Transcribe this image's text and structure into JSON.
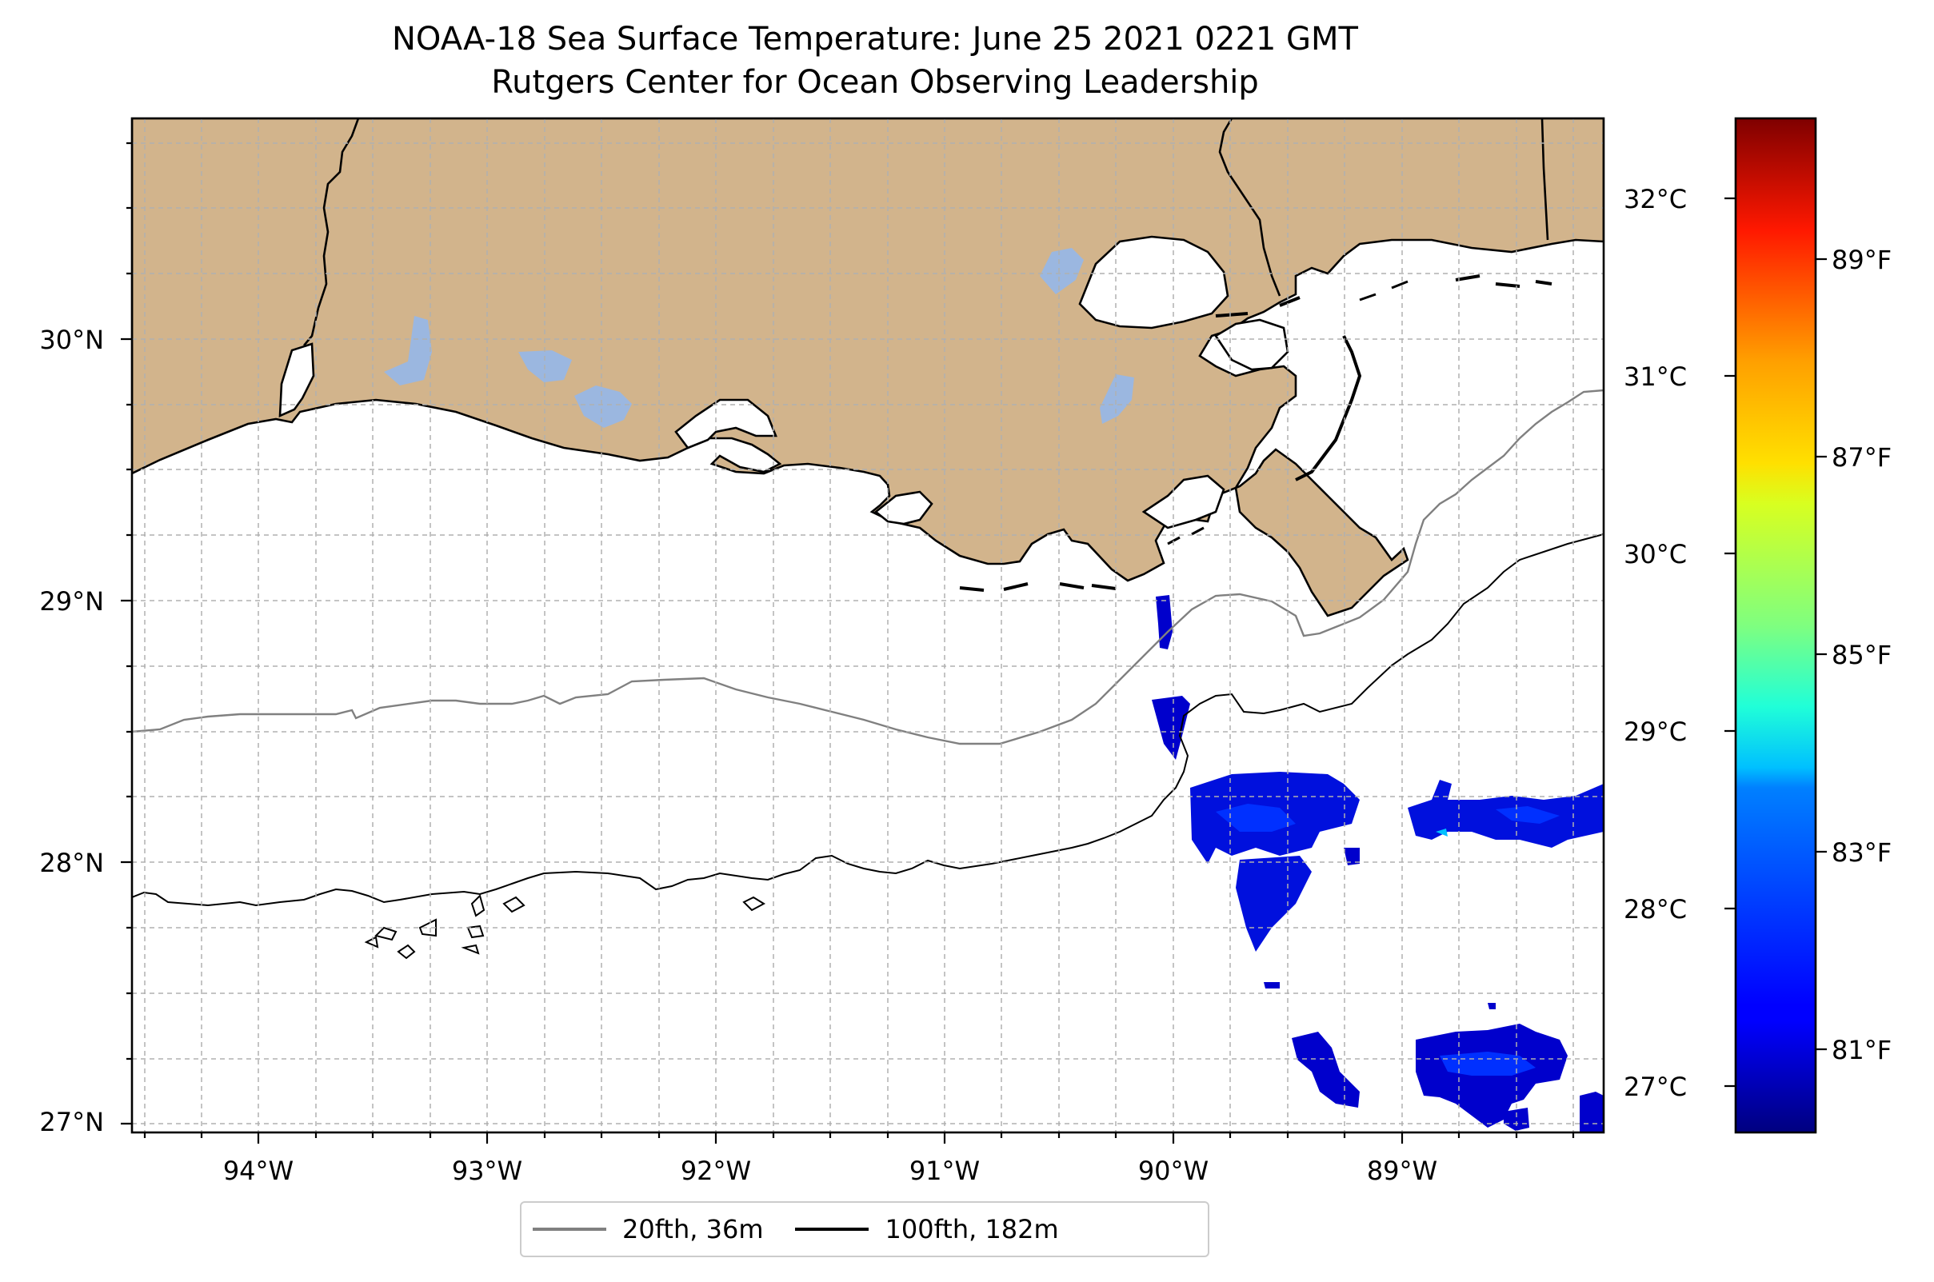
{
  "title": {
    "line1": "NOAA-18 Sea Surface Temperature: June 25 2021 0221 GMT",
    "line2": "Rutgers Center for Ocean Observing Leadership"
  },
  "map": {
    "lon_range": [
      -94.55,
      -88.15
    ],
    "lat_range": [
      26.95,
      30.85
    ],
    "lat_ticks": [
      "30°N",
      "29°N",
      "28°N",
      "27°N"
    ],
    "lon_ticks": [
      "94°W",
      "93°W",
      "92°W",
      "91°W",
      "90°W",
      "89°W"
    ],
    "land_color": "#d2b48c",
    "lake_color": "#9bb7e0",
    "gridlines": true
  },
  "colorbar": {
    "colormap": "jet",
    "celsius_ticks": [
      "32°C",
      "31°C",
      "30°C",
      "29°C",
      "28°C",
      "27°C"
    ],
    "fahrenheit_ticks": [
      "89°F",
      "87°F",
      "85°F",
      "83°F",
      "81°F"
    ]
  },
  "legend": {
    "items": [
      {
        "label": "20fth, 36m",
        "color": "#808080"
      },
      {
        "label": "100fth, 182m",
        "color": "#000000"
      }
    ]
  }
}
